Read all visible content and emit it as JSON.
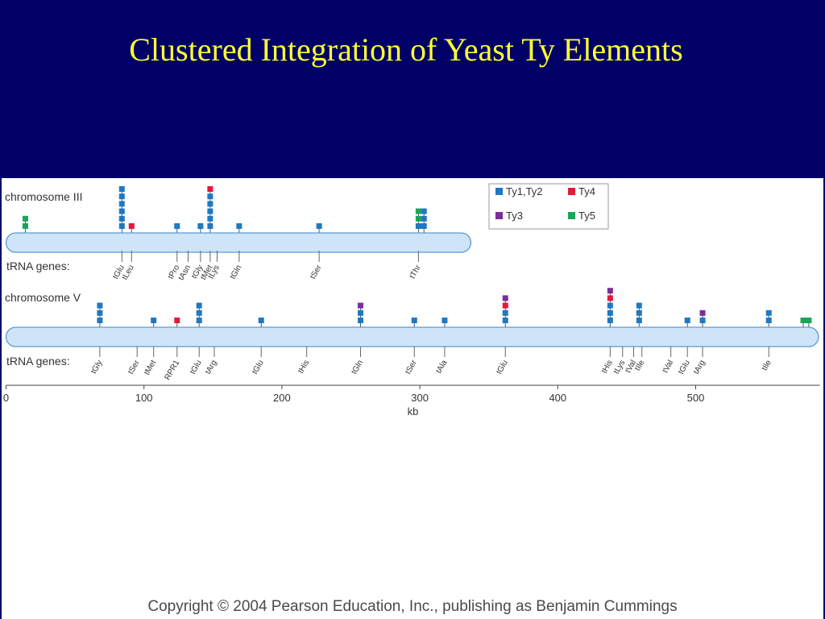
{
  "slide": {
    "title": "Clustered Integration of Yeast Ty Elements",
    "copyright": "Copyright © 2004 Pearson Education, Inc., publishing as Benjamin Cummings"
  },
  "colors": {
    "background": "#000066",
    "title": "#ffff33",
    "ty1_ty2": "#1f78c1",
    "ty4": "#e8173a",
    "ty3": "#7b2d9a",
    "ty5": "#18a65a",
    "chromosome_fill": "#cfe4f7",
    "chromosome_stroke": "#5b9bd5"
  },
  "legend": [
    {
      "type": "ty12",
      "label": "Ty1,Ty2",
      "color": "#1f78c1"
    },
    {
      "type": "ty4",
      "label": "Ty4",
      "color": "#e8173a"
    },
    {
      "type": "ty3",
      "label": "Ty3",
      "color": "#7b2d9a"
    },
    {
      "type": "ty5",
      "label": "Ty5",
      "color": "#18a65a"
    }
  ],
  "axis": {
    "label": "kb",
    "ticks": [
      0,
      100,
      200,
      300,
      400,
      500
    ],
    "range_kb": [
      0,
      590
    ]
  },
  "chromosomes": [
    {
      "name": "chromosome III",
      "trna_label": "tRNA genes:",
      "length_kb": 337,
      "elements": [
        {
          "kb": 14,
          "stack": [
            "ty5",
            "ty5"
          ]
        },
        {
          "kb": 84,
          "stack": [
            "ty12",
            "ty12",
            "ty12",
            "ty12",
            "ty12",
            "ty12"
          ]
        },
        {
          "kb": 91,
          "stack": [
            "ty4"
          ]
        },
        {
          "kb": 124,
          "stack": [
            "ty12"
          ]
        },
        {
          "kb": 141,
          "stack": [
            "ty12"
          ]
        },
        {
          "kb": 148,
          "stack": [
            "ty12",
            "ty12",
            "ty12",
            "ty12",
            "ty12",
            "ty4"
          ]
        },
        {
          "kb": 169,
          "stack": [
            "ty12"
          ]
        },
        {
          "kb": 227,
          "stack": [
            "ty12"
          ]
        },
        {
          "kb": 299,
          "stack": [
            "ty12",
            "ty5",
            "ty5"
          ]
        },
        {
          "kb": 303,
          "stack": [
            "ty12",
            "ty12",
            "ty12"
          ]
        }
      ],
      "trna_genes": [
        {
          "kb": 84,
          "name": "tGlu"
        },
        {
          "kb": 91,
          "name": "tLeu"
        },
        {
          "kb": 124,
          "name": "tPro"
        },
        {
          "kb": 132,
          "name": "tAsn"
        },
        {
          "kb": 141,
          "name": "tGly"
        },
        {
          "kb": 148,
          "name": "tMet"
        },
        {
          "kb": 153,
          "name": "tLys"
        },
        {
          "kb": 169,
          "name": "tGln"
        },
        {
          "kb": 227,
          "name": "tSer"
        },
        {
          "kb": 299,
          "name": "tThr"
        }
      ]
    },
    {
      "name": "chromosome V",
      "trna_label": "tRNA genes:",
      "length_kb": 589,
      "elements": [
        {
          "kb": 68,
          "stack": [
            "ty12",
            "ty12",
            "ty12"
          ]
        },
        {
          "kb": 107,
          "stack": [
            "ty12"
          ]
        },
        {
          "kb": 124,
          "stack": [
            "ty4"
          ]
        },
        {
          "kb": 140,
          "stack": [
            "ty12",
            "ty12",
            "ty12"
          ]
        },
        {
          "kb": 185,
          "stack": [
            "ty12"
          ]
        },
        {
          "kb": 257,
          "stack": [
            "ty12",
            "ty12",
            "ty3"
          ]
        },
        {
          "kb": 296,
          "stack": [
            "ty12"
          ]
        },
        {
          "kb": 318,
          "stack": [
            "ty12"
          ]
        },
        {
          "kb": 362,
          "stack": [
            "ty12",
            "ty12",
            "ty4",
            "ty3"
          ]
        },
        {
          "kb": 438,
          "stack": [
            "ty12",
            "ty12",
            "ty12",
            "ty4",
            "ty3"
          ]
        },
        {
          "kb": 459,
          "stack": [
            "ty12",
            "ty12",
            "ty12"
          ]
        },
        {
          "kb": 494,
          "stack": [
            "ty12"
          ]
        },
        {
          "kb": 505,
          "stack": [
            "ty12",
            "ty3"
          ]
        },
        {
          "kb": 553,
          "stack": [
            "ty12",
            "ty12"
          ]
        },
        {
          "kb": 578,
          "stack": [
            "ty5"
          ]
        },
        {
          "kb": 582,
          "stack": [
            "ty5"
          ]
        }
      ],
      "trna_genes": [
        {
          "kb": 68,
          "name": "tGly"
        },
        {
          "kb": 95,
          "name": "tSer"
        },
        {
          "kb": 107,
          "name": "tMet"
        },
        {
          "kb": 124,
          "name": "RPR1"
        },
        {
          "kb": 140,
          "name": "tGlu"
        },
        {
          "kb": 151,
          "name": "tArg"
        },
        {
          "kb": 185,
          "name": "tGlu"
        },
        {
          "kb": 218,
          "name": "tHis"
        },
        {
          "kb": 257,
          "name": "tGln"
        },
        {
          "kb": 296,
          "name": "tSer"
        },
        {
          "kb": 318,
          "name": "tAla"
        },
        {
          "kb": 362,
          "name": "tGlu"
        },
        {
          "kb": 438,
          "name": "tHis"
        },
        {
          "kb": 447,
          "name": "tLys"
        },
        {
          "kb": 455,
          "name": "tVal"
        },
        {
          "kb": 461,
          "name": "tIle"
        },
        {
          "kb": 482,
          "name": "tVal"
        },
        {
          "kb": 494,
          "name": "tGlu"
        },
        {
          "kb": 505,
          "name": "tArg"
        },
        {
          "kb": 553,
          "name": "tIle"
        }
      ]
    }
  ]
}
